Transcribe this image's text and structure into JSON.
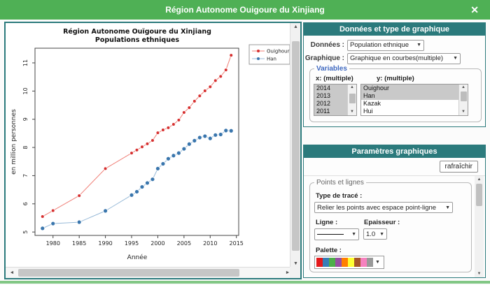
{
  "window": {
    "title": "Région Autonome Ouigoure du Xinjiang",
    "close_icon": "✕"
  },
  "colors": {
    "titlebar_green": "#4fb055",
    "header_teal": "#2b7a7c",
    "bottom_strip_green": "#82c785",
    "list_selection_gray": "#c9c9c9",
    "series_red_point": "#d63030",
    "series_red_line": "#f08078",
    "series_blue_point": "#3a76ad",
    "series_blue_line": "#98bad8"
  },
  "chart_data": {
    "type": "line",
    "title_line1": "Région Autonome Ouïgoure du Xinjiang",
    "title_line2": "Populations ethniques",
    "xlabel": "Année",
    "ylabel": "en million personnes",
    "x_ticks": [
      1980,
      1985,
      1990,
      1995,
      2000,
      2005,
      2010,
      2015
    ],
    "y_ticks": [
      5,
      6,
      7,
      8,
      9,
      10,
      11
    ],
    "xlim": [
      1976.56,
      2015.44
    ],
    "ylim": [
      4.88,
      11.52
    ],
    "grid": false,
    "legend_position": "top-right",
    "x": [
      1978,
      1980,
      1985,
      1990,
      1995,
      1996,
      1997,
      1998,
      1999,
      2000,
      2001,
      2002,
      2003,
      2004,
      2005,
      2006,
      2007,
      2008,
      2009,
      2010,
      2011,
      2012,
      2013,
      2014
    ],
    "series": [
      {
        "name": "Ouighour",
        "point_color": "#d63030",
        "line_color": "#f08078",
        "marker_radius": 2.0,
        "values": [
          5.55,
          5.76,
          6.29,
          7.25,
          7.8,
          7.91,
          8.02,
          8.13,
          8.25,
          8.52,
          8.62,
          8.7,
          8.82,
          8.97,
          9.24,
          9.41,
          9.64,
          9.83,
          10.01,
          10.15,
          10.37,
          10.52,
          10.75,
          11.27
        ]
      },
      {
        "name": "Han",
        "point_color": "#3a76ad",
        "line_color": "#98bad8",
        "marker_radius": 2.6,
        "values": [
          5.13,
          5.3,
          5.35,
          5.75,
          6.31,
          6.43,
          6.6,
          6.74,
          6.87,
          7.25,
          7.42,
          7.6,
          7.71,
          7.8,
          7.95,
          8.12,
          8.24,
          8.35,
          8.4,
          8.32,
          8.44,
          8.46,
          8.6,
          8.59
        ]
      }
    ]
  },
  "controls": {
    "section1": {
      "header": "Données et type de graphique",
      "rows": [
        {
          "label": "Données :",
          "value": "Population ethnique"
        },
        {
          "label": "Graphique :",
          "value": "Graphique en courbes(multiple)"
        }
      ],
      "dropdown_arrow": "▼",
      "variables": {
        "legend": "Variables",
        "x_label": "x: (multiple)",
        "y_label": "y: (multiple)",
        "x_items": [
          {
            "label": "2014",
            "selected": true
          },
          {
            "label": "2013",
            "selected": true
          },
          {
            "label": "2012",
            "selected": true
          },
          {
            "label": "2011",
            "selected": true
          }
        ],
        "y_items": [
          {
            "label": "Ouighour",
            "selected": true
          },
          {
            "label": "Han",
            "selected": true
          },
          {
            "label": "Kazak",
            "selected": false
          },
          {
            "label": "Hui",
            "selected": false
          }
        ]
      }
    },
    "section2": {
      "header": "Paramètres graphiques",
      "refresh_button": "rafraîchir",
      "points_lines": {
        "legend": "Points et lignes",
        "trace_label": "Type de tracé :",
        "trace_value": "Relier les points avec espace point-ligne",
        "line_label": "Ligne :",
        "thickness_label": "Epaisseur :",
        "thickness_value": "1.0",
        "palette_label": "Palette :",
        "palette_colors": [
          "#e41a1c",
          "#377eb8",
          "#4daf4a",
          "#984ea3",
          "#ff7f00",
          "#ffff33",
          "#a65628",
          "#f781bf",
          "#999999"
        ]
      }
    }
  }
}
